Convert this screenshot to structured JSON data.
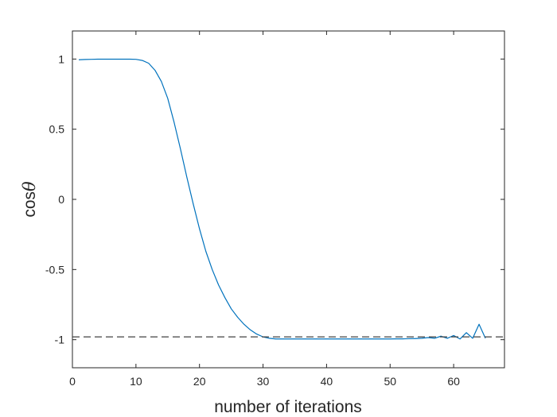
{
  "chart_data": {
    "type": "line",
    "xlabel": "number of iterations",
    "ylabel": "cos",
    "ylabel_symbol": "θ",
    "xlim": [
      0,
      68
    ],
    "ylim": [
      -1.2,
      1.2
    ],
    "xticks": [
      "0",
      "10",
      "20",
      "30",
      "40",
      "50",
      "60"
    ],
    "yticks": [
      "-1",
      "-0.5",
      "0",
      "0.5",
      "1"
    ],
    "grid": false,
    "series": [
      {
        "color": "#0072BD",
        "style": "solid",
        "x": [
          1,
          2,
          3,
          4,
          5,
          6,
          7,
          8,
          9,
          10,
          11,
          12,
          13,
          14,
          15,
          16,
          17,
          18,
          19,
          20,
          21,
          22,
          23,
          24,
          25,
          26,
          27,
          28,
          29,
          30,
          31,
          32,
          33,
          34,
          35,
          36,
          37,
          38,
          39,
          40,
          41,
          42,
          43,
          44,
          45,
          46,
          47,
          48,
          49,
          50,
          51,
          52,
          53,
          54,
          55,
          56,
          57,
          58,
          59,
          60,
          61,
          62,
          63,
          64,
          65
        ],
        "y": [
          0.995,
          0.997,
          0.998,
          0.999,
          0.999,
          0.999,
          0.999,
          0.999,
          0.999,
          0.998,
          0.99,
          0.97,
          0.92,
          0.84,
          0.72,
          0.55,
          0.36,
          0.16,
          -0.03,
          -0.21,
          -0.37,
          -0.5,
          -0.61,
          -0.7,
          -0.78,
          -0.84,
          -0.89,
          -0.93,
          -0.96,
          -0.98,
          -0.99,
          -0.995,
          -0.995,
          -0.995,
          -0.995,
          -0.995,
          -0.995,
          -0.995,
          -0.995,
          -0.995,
          -0.995,
          -0.995,
          -0.995,
          -0.995,
          -0.995,
          -0.995,
          -0.995,
          -0.995,
          -0.995,
          -0.995,
          -0.994,
          -0.994,
          -0.993,
          -0.992,
          -0.99,
          -0.985,
          -0.99,
          -0.975,
          -0.99,
          -0.97,
          -0.995,
          -0.95,
          -0.99,
          -0.89,
          -0.99
        ]
      },
      {
        "color": "#404040",
        "style": "dashed",
        "x": [
          0,
          68
        ],
        "y": [
          -0.98,
          -0.98
        ]
      }
    ]
  }
}
